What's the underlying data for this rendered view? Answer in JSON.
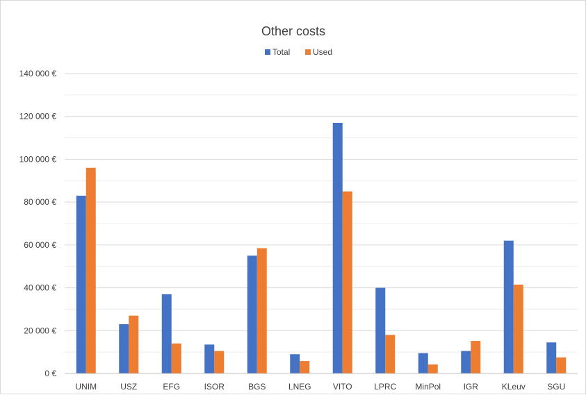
{
  "chart_data": {
    "type": "bar",
    "title": "Other costs",
    "xlabel": "",
    "ylabel": "",
    "categories": [
      "UNIM",
      "USZ",
      "EFG",
      "ISOR",
      "BGS",
      "LNEG",
      "VITO",
      "LPRC",
      "MinPol",
      "IGR",
      "KLeuv",
      "SGU"
    ],
    "series": [
      {
        "name": "Total",
        "color": "#4472C4",
        "values": [
          83000,
          23000,
          37000,
          13500,
          55000,
          9000,
          117000,
          40000,
          9500,
          10500,
          62000,
          14500
        ]
      },
      {
        "name": "Used",
        "color": "#ED7D31",
        "values": [
          96000,
          27000,
          14000,
          10500,
          58500,
          5800,
          85000,
          18000,
          4200,
          15200,
          41500,
          7500
        ]
      }
    ],
    "ylim": [
      0,
      140000
    ],
    "yticks": [
      0,
      20000,
      40000,
      60000,
      80000,
      100000,
      120000,
      140000
    ],
    "ytick_labels": [
      "0 €",
      "20 000 €",
      "40 000 €",
      "60 000 €",
      "80 000 €",
      "100 000 €",
      "120 000 €",
      "140 000 €"
    ],
    "legend_position": "top",
    "grid": true
  }
}
